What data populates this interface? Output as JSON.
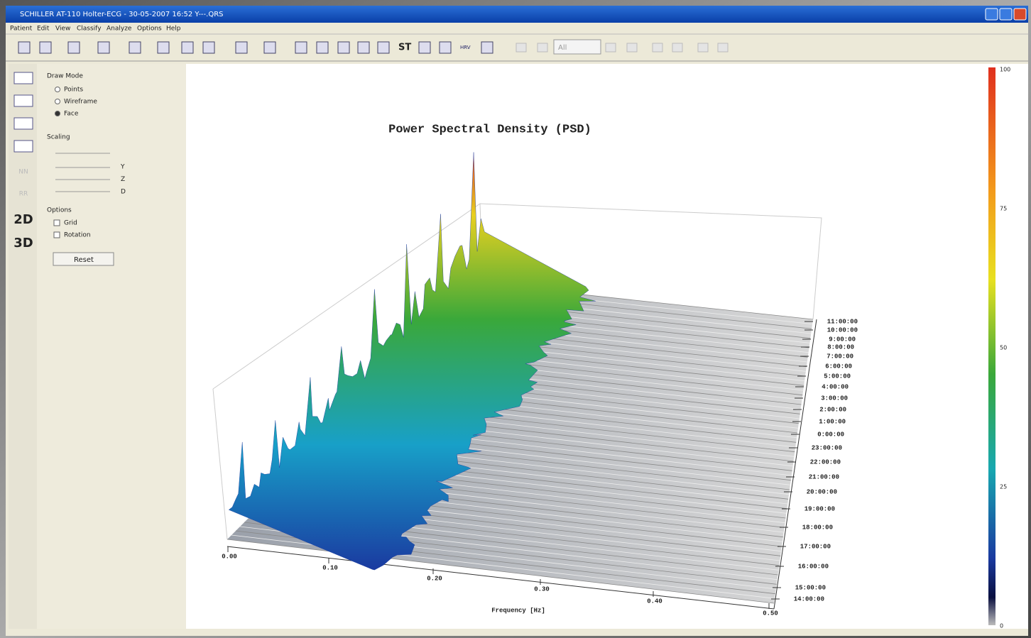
{
  "window": {
    "title": "SCHILLER AT-110 Holter-ECG - 30-05-2007 16:52 Y---.QRS",
    "menu": [
      "Patient",
      "Edit",
      "View",
      "Classify",
      "Analyze",
      "Options",
      "Help"
    ]
  },
  "toolbar": {
    "labels": [
      "ST",
      "HRV"
    ],
    "combo": "All"
  },
  "sidebar": {
    "icons": [
      "NN",
      "RR",
      "2D",
      "3D"
    ],
    "draw_mode": {
      "label": "Draw Mode",
      "options": [
        "Points",
        "Wireframe",
        "Face"
      ]
    },
    "scaling": {
      "label": "Scaling",
      "axes": [
        "Y",
        "Z",
        "D"
      ]
    },
    "options": {
      "label": "Options",
      "items": [
        "Grid",
        "Rotation"
      ]
    },
    "reset": "Reset"
  },
  "plot": {
    "title": "Power Spectral Density (PSD)",
    "x_label": "Frequency [Hz]",
    "x_ticks": [
      "0.00",
      "0.10",
      "0.20",
      "0.30",
      "0.40",
      "0.50"
    ],
    "time_ticks": [
      "11:00:00",
      "10:00:00",
      "9:00:00",
      "8:00:00",
      "7:00:00",
      "6:00:00",
      "5:00:00",
      "4:00:00",
      "3:00:00",
      "2:00:00",
      "1:00:00",
      "0:00:00",
      "23:00:00",
      "22:00:00",
      "21:00:00",
      "20:00:00",
      "19:00:00",
      "18:00:00",
      "17:00:00",
      "16:00:00",
      "15:00:00",
      "14:00:00"
    ],
    "colorbar_ticks": [
      "100",
      "75",
      "50",
      "25",
      "0"
    ]
  }
}
